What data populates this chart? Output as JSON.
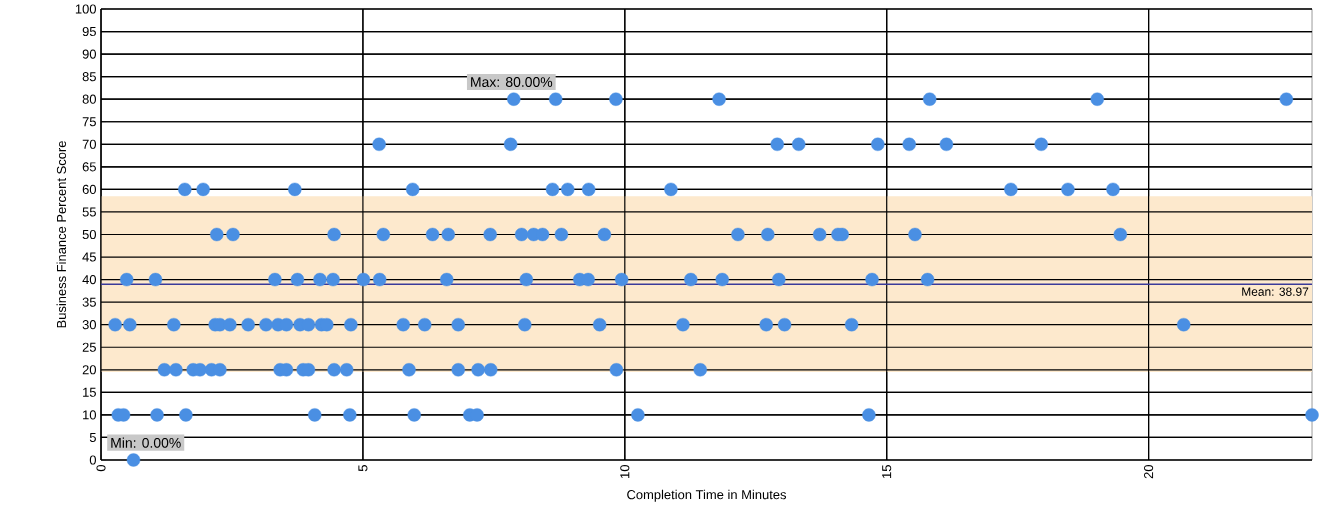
{
  "chart_data": {
    "type": "scatter",
    "xlabel": "Completion Time in Minutes",
    "ylabel": "Business Finance Percent Score",
    "x": [
      7.88,
      8.68,
      9.83,
      11.8,
      15.82,
      19.02,
      22.63,
      5.31,
      7.82,
      12.91,
      13.32,
      14.83,
      15.43,
      16.14,
      17.95,
      1.6,
      1.95,
      3.7,
      5.95,
      8.62,
      8.91,
      9.31,
      10.88,
      17.37,
      18.46,
      19.32,
      2.21,
      2.52,
      4.45,
      5.39,
      6.33,
      6.63,
      7.43,
      8.03,
      8.26,
      8.43,
      8.79,
      9.61,
      12.16,
      12.73,
      13.72,
      14.07,
      14.15,
      15.54,
      19.46,
      0.49,
      1.04,
      3.32,
      3.75,
      4.18,
      4.43,
      5.01,
      5.32,
      6.6,
      8.12,
      9.14,
      9.3,
      9.94,
      11.26,
      11.86,
      12.94,
      14.72,
      15.78,
      0.27,
      0.55,
      1.39,
      2.18,
      2.27,
      2.46,
      2.81,
      3.15,
      3.38,
      3.54,
      3.8,
      3.96,
      4.21,
      4.31,
      4.77,
      5.77,
      6.18,
      6.82,
      8.09,
      9.52,
      11.11,
      12.7,
      13.05,
      14.33,
      20.67,
      1.21,
      1.43,
      1.76,
      1.89,
      2.11,
      2.27,
      3.42,
      3.54,
      3.86,
      3.96,
      4.45,
      4.69,
      5.88,
      6.82,
      7.2,
      7.44,
      9.84,
      11.44,
      0.33,
      0.43,
      1.07,
      1.62,
      4.08,
      4.75,
      5.98,
      7.04,
      7.18,
      10.25,
      14.66,
      23.12,
      0.62
    ],
    "values": [
      80,
      80,
      80,
      80,
      80,
      80,
      80,
      70,
      70,
      70,
      70,
      70,
      70,
      70,
      70,
      60,
      60,
      60,
      60,
      60,
      60,
      60,
      60,
      60,
      60,
      60,
      50,
      50,
      50,
      50,
      50,
      50,
      50,
      50,
      50,
      50,
      50,
      50,
      50,
      50,
      50,
      50,
      50,
      50,
      50,
      40,
      40,
      40,
      40,
      40,
      40,
      40,
      40,
      40,
      40,
      40,
      40,
      40,
      40,
      40,
      40,
      40,
      40,
      30,
      30,
      30,
      30,
      30,
      30,
      30,
      30,
      30,
      30,
      30,
      30,
      30,
      30,
      30,
      30,
      30,
      30,
      30,
      30,
      30,
      30,
      30,
      30,
      30,
      20,
      20,
      20,
      20,
      20,
      20,
      20,
      20,
      20,
      20,
      20,
      20,
      20,
      20,
      20,
      20,
      20,
      20,
      10,
      10,
      10,
      10,
      10,
      10,
      10,
      10,
      10,
      10,
      10,
      10,
      0
    ],
    "color": "#4a8fe3",
    "marker": "circle",
    "xlim": [
      0,
      23.12
    ],
    "ylim": [
      0,
      100
    ],
    "xticks": [
      0,
      5,
      10,
      15,
      20
    ],
    "yticks": [
      0,
      5,
      10,
      15,
      20,
      25,
      30,
      35,
      40,
      45,
      50,
      55,
      60,
      65,
      70,
      75,
      80,
      85,
      90,
      95,
      100
    ],
    "grid": true,
    "ref_lines": [
      {
        "axis": "y",
        "value": 38.97,
        "label": "Mean: 38.97",
        "color": "#3a3a9a"
      }
    ],
    "bands": [
      {
        "axis": "y",
        "from": 19.5,
        "to": 58.5,
        "color": "#fde9cd"
      }
    ],
    "annotations": [
      {
        "text": "Max: 80.00%",
        "x": 7.88,
        "y": 80
      },
      {
        "text": "Min: 0.00%",
        "x": 0.62,
        "y": 0
      }
    ]
  }
}
